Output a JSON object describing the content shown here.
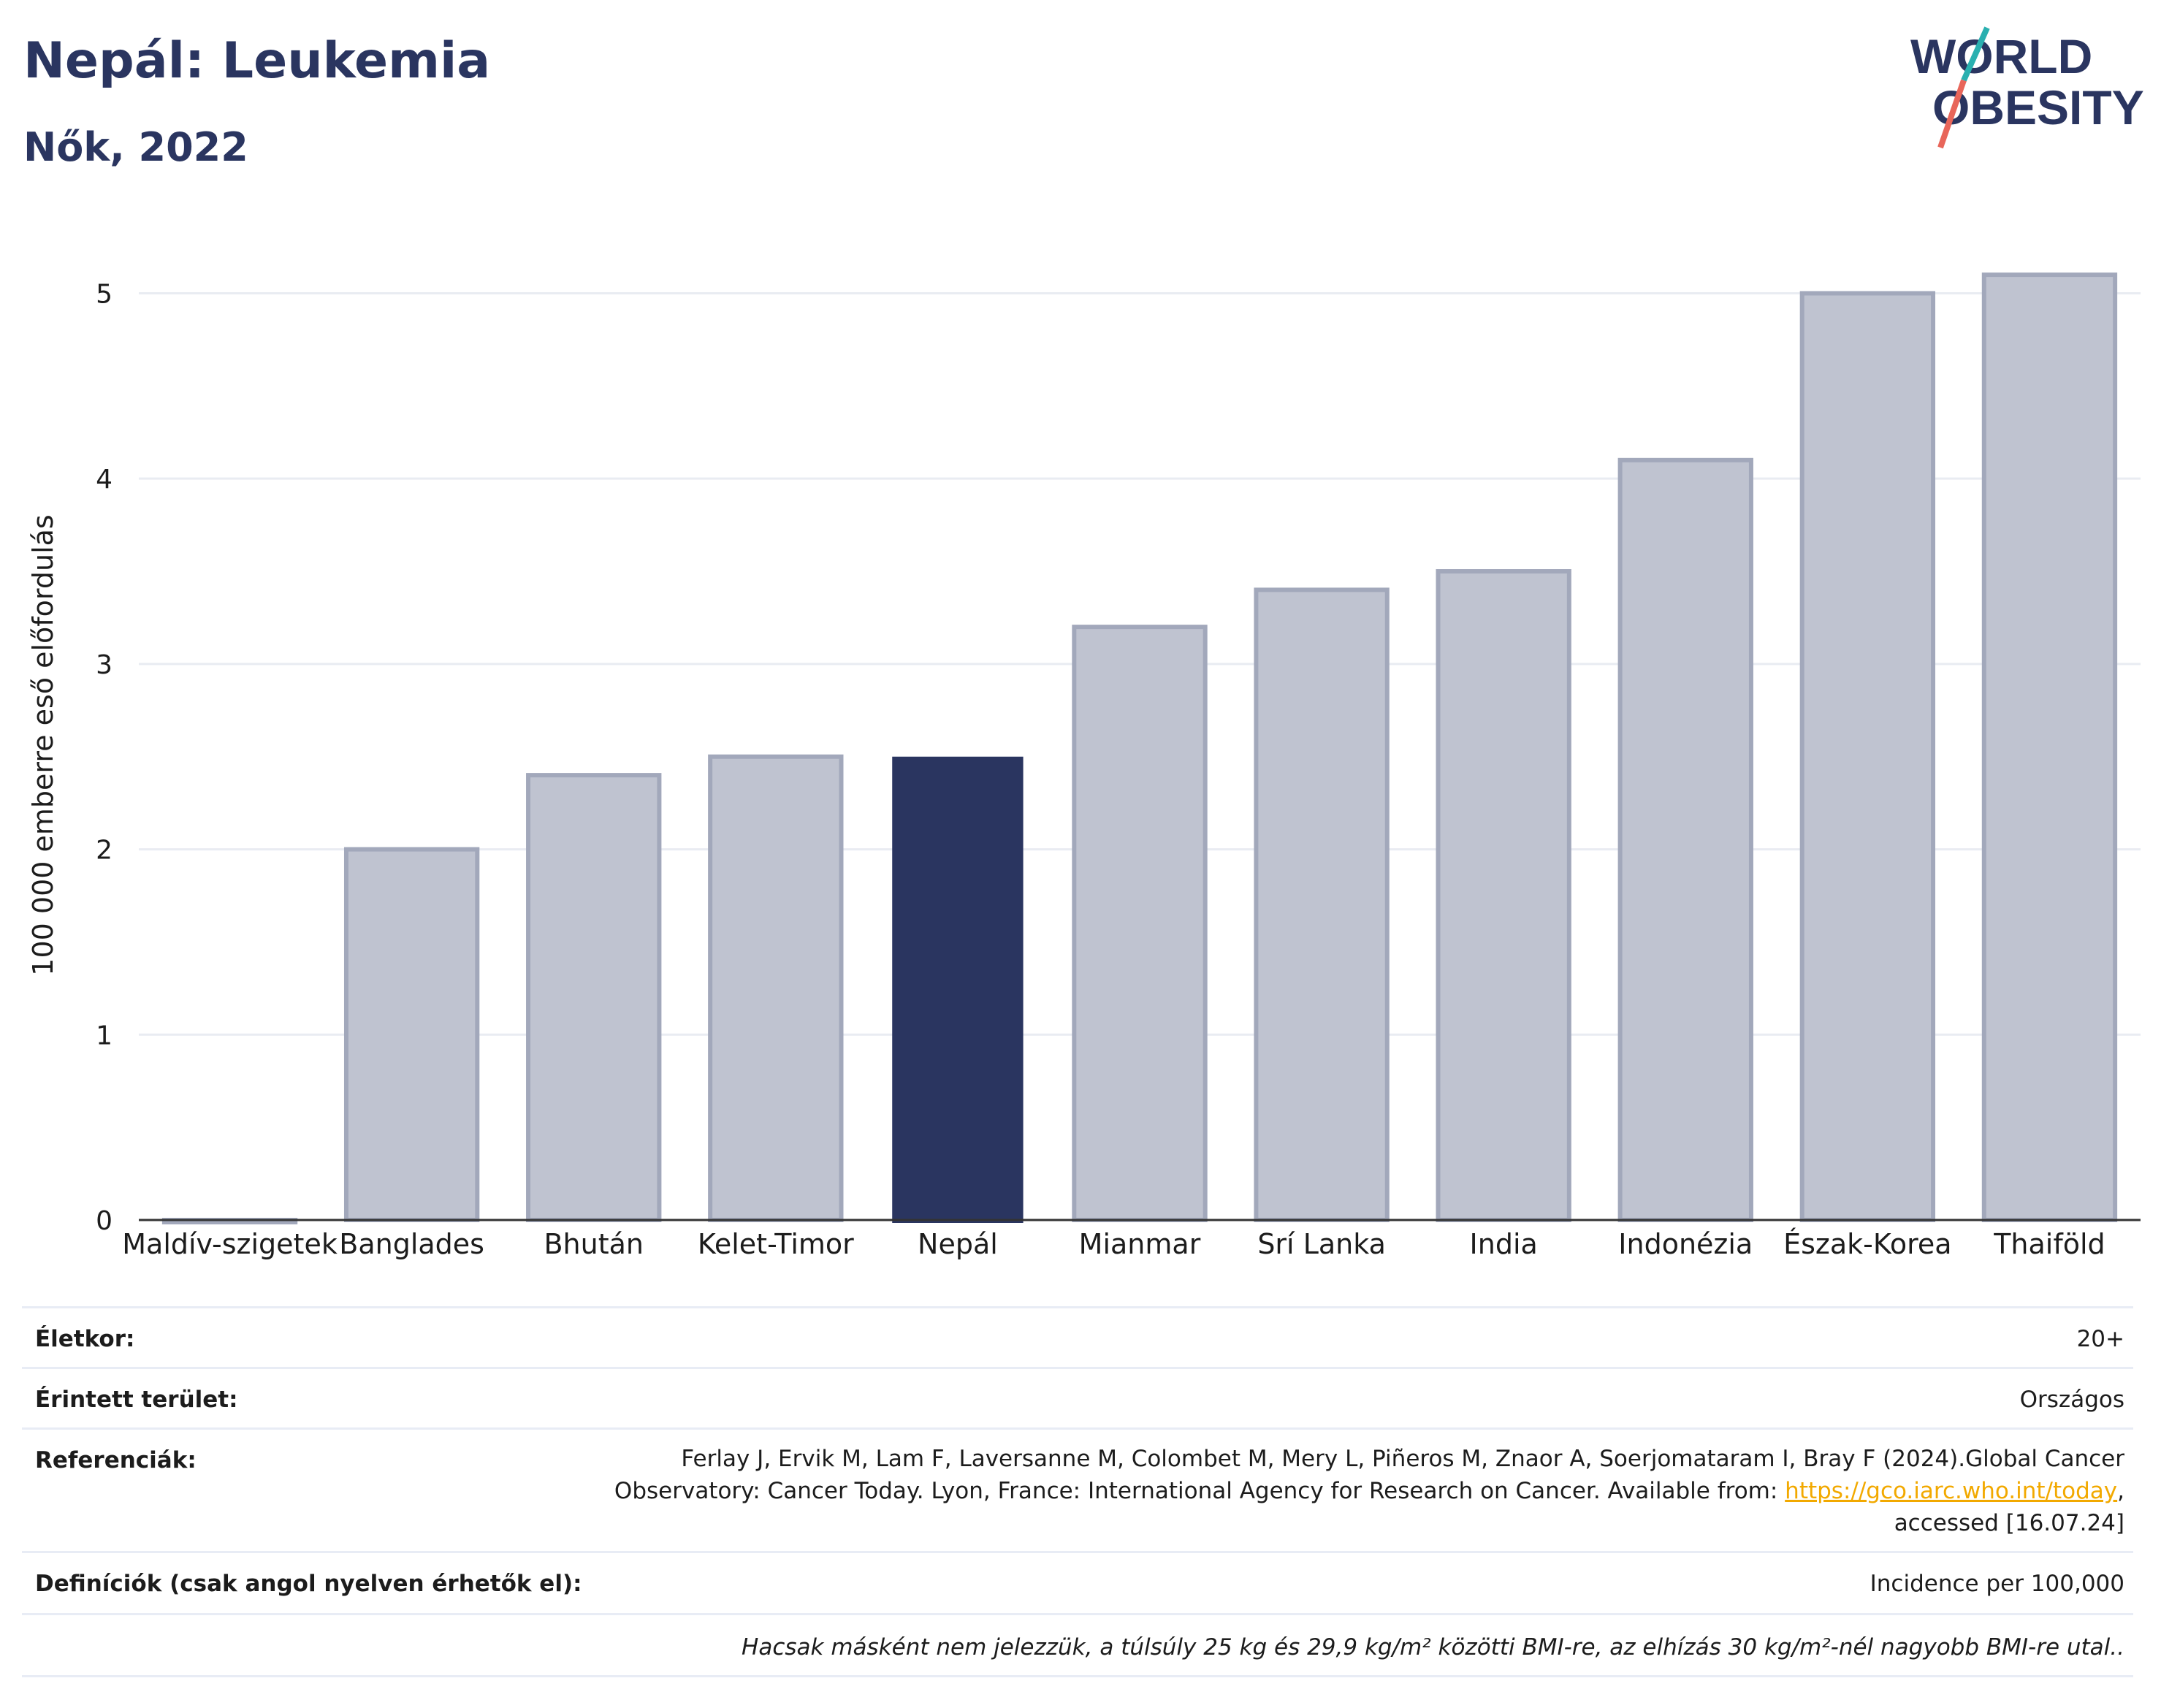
{
  "header": {
    "title": "Nepál: Leukemia",
    "subtitle": "Nők, 2022"
  },
  "logo": {
    "line1": "WORLD",
    "line2": "OBESITY",
    "colors": {
      "text": "#2a3560",
      "slash_top": "#2ab0b0",
      "slash_bottom": "#e8665a"
    }
  },
  "chart_data": {
    "type": "bar",
    "categories": [
      "Maldív-szigetek",
      "Banglades",
      "Bhután",
      "Kelet-Timor",
      "Nepál",
      "Mianmar",
      "Srí Lanka",
      "India",
      "Indonézia",
      "Észak-Korea",
      "Thaiföld"
    ],
    "values": [
      0,
      2.0,
      2.4,
      2.5,
      2.5,
      3.2,
      3.4,
      3.5,
      4.1,
      5.0,
      5.1
    ],
    "highlight": "Nepál",
    "ylabel": "100 000 emberre eső előfordulás",
    "xlabel": "",
    "ylim": [
      0,
      5.4
    ],
    "yticks": [
      0,
      1,
      2,
      3,
      4,
      5
    ],
    "grid": true,
    "colors": {
      "bar": "#bfc3d0",
      "bar_border": "#a2a8bb",
      "highlight": "#2a3560",
      "grid": "#e9ecf2",
      "axis": "#333333"
    }
  },
  "info": {
    "age_label": "Életkor:",
    "age_value": "20+",
    "area_label": "Érintett terület:",
    "area_value": "Országos",
    "ref_label": "Referenciák:",
    "ref_line1": "Ferlay J, Ervik M, Lam F, Laversanne M, Colombet M, Mery L, Piñeros M, Znaor A, Soerjomataram I, Bray F (2024).Global Cancer",
    "ref_line2_pre": "Observatory: Cancer Today. Lyon, France: International Agency for Research on Cancer. Available from: ",
    "ref_link": "https://gco.iarc.who.int/today",
    "ref_line2_post": ",",
    "ref_line3": "accessed [16.07.24]",
    "def_label": "Definíciók (csak angol nyelven érhetők el):",
    "def_value": "Incidence per 100,000",
    "note": "Hacsak másként nem jelezzük, a túlsúly 25 kg és 29,9 kg/m² közötti BMI-re, az elhízás 30 kg/m²-nél nagyobb BMI-re utal.."
  }
}
